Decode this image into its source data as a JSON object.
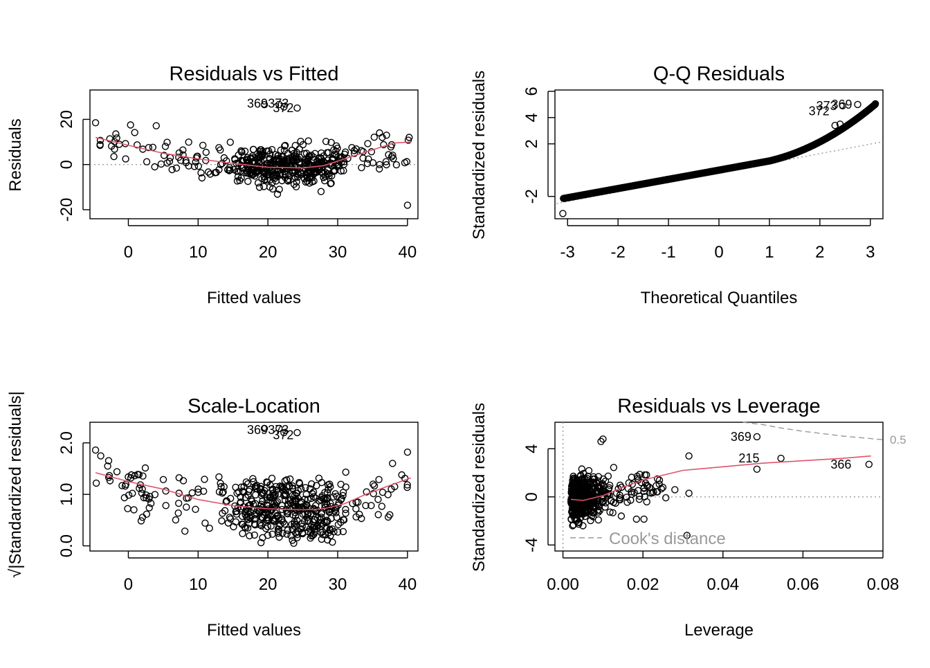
{
  "colors": {
    "smooth": "#DF536B",
    "reference": "#999999",
    "cook": "#999999",
    "points": "#000000"
  },
  "chart_data": [
    {
      "type": "scatter",
      "title": "Residuals vs Fitted",
      "xlabel": "Fitted values",
      "ylabel": "Residuals",
      "xlim": [
        -5.5,
        41.5
      ],
      "ylim": [
        -24,
        33
      ],
      "xticks": [
        0,
        10,
        20,
        30,
        40
      ],
      "yticks": [
        -20,
        0,
        20
      ],
      "hline": 0,
      "labels": [
        {
          "text": "369",
          "x": 18.5,
          "y": 27
        },
        {
          "text": "373",
          "x": 21.5,
          "y": 27
        },
        {
          "text": "372",
          "x": 22.2,
          "y": 25
        }
      ],
      "smooth": [
        [
          -4.7,
          12
        ],
        [
          0,
          8.5
        ],
        [
          5,
          5
        ],
        [
          10,
          2.5
        ],
        [
          15,
          0.5
        ],
        [
          20,
          -1.2
        ],
        [
          25,
          -1.5
        ],
        [
          28,
          -0.5
        ],
        [
          31,
          2.5
        ],
        [
          33,
          4.5
        ],
        [
          36,
          7.5
        ],
        [
          38,
          9.5
        ],
        [
          40.5,
          10
        ]
      ],
      "n_points": 490,
      "seed": 11
    },
    {
      "type": "scatter",
      "title": "Q-Q Residuals",
      "xlabel": "Theoretical Quantiles",
      "ylabel": "Standardized residuals",
      "xlim": [
        -3.25,
        3.25
      ],
      "ylim": [
        -3.7,
        6.1
      ],
      "xticks": [
        -3,
        -2,
        -1,
        0,
        1,
        2,
        3
      ],
      "yticks": [
        -2,
        2,
        4,
        6
      ],
      "qq_line": [
        [
          -3.3,
          -2.6
        ],
        [
          3.3,
          2.2
        ]
      ],
      "labels": [
        {
          "text": "373",
          "x": 2.45,
          "y": 4.9
        },
        {
          "text": "369",
          "x": 2.75,
          "y": 5.0
        },
        {
          "text": "372",
          "x": 2.3,
          "y": 4.5
        }
      ],
      "n_points": 490,
      "seed": 23
    },
    {
      "type": "scatter",
      "title": "Scale-Location",
      "xlabel": "Fitted values",
      "ylabel": "√|Standardized residuals|",
      "xlim": [
        -5.5,
        41.5
      ],
      "ylim": [
        -0.1,
        2.4
      ],
      "xticks": [
        0,
        10,
        20,
        30,
        40
      ],
      "yticks": [
        0.0,
        1.0,
        2.0
      ],
      "ytick_labels": [
        "0.0",
        "1.0",
        "2.0"
      ],
      "labels": [
        {
          "text": "369",
          "x": 18.5,
          "y": 2.25
        },
        {
          "text": "373",
          "x": 21.5,
          "y": 2.25
        },
        {
          "text": "372",
          "x": 22.2,
          "y": 2.15
        }
      ],
      "smooth": [
        [
          -4.7,
          1.42
        ],
        [
          0,
          1.25
        ],
        [
          5,
          1.1
        ],
        [
          10,
          0.9
        ],
        [
          15,
          0.78
        ],
        [
          20,
          0.72
        ],
        [
          25,
          0.7
        ],
        [
          28,
          0.72
        ],
        [
          31,
          0.82
        ],
        [
          34,
          1.0
        ],
        [
          37,
          1.15
        ],
        [
          40.5,
          1.32
        ]
      ],
      "n_points": 490,
      "seed": 37
    },
    {
      "type": "scatter",
      "title": "Residuals vs Leverage",
      "xlabel": "Leverage",
      "ylabel": "Standardized residuals",
      "xlim": [
        -0.002,
        0.08
      ],
      "ylim": [
        -4.5,
        6.2
      ],
      "xticks": [
        0.0,
        0.02,
        0.04,
        0.06,
        0.08
      ],
      "xtick_labels": [
        "0.00",
        "0.02",
        "0.04",
        "0.06",
        "0.08"
      ],
      "yticks": [
        -4,
        0,
        4
      ],
      "hline": 0,
      "vline": 0,
      "labels": [
        {
          "text": "369",
          "x": 0.0485,
          "y": 5.0
        },
        {
          "text": "215",
          "x": 0.0505,
          "y": 3.2
        },
        {
          "text": "366",
          "x": 0.0735,
          "y": 2.7
        }
      ],
      "cook_label": "0.5",
      "legend_text": "Cook's distance",
      "cook_curve": [
        [
          0.045,
          6.2
        ],
        [
          0.05,
          6.0
        ],
        [
          0.055,
          5.7
        ],
        [
          0.06,
          5.45
        ],
        [
          0.065,
          5.25
        ],
        [
          0.07,
          5.05
        ],
        [
          0.075,
          4.9
        ],
        [
          0.08,
          4.75
        ]
      ],
      "smooth": [
        [
          0.002,
          -0.2
        ],
        [
          0.005,
          -0.3
        ],
        [
          0.01,
          0.1
        ],
        [
          0.015,
          0.8
        ],
        [
          0.02,
          1.4
        ],
        [
          0.03,
          2.2
        ],
        [
          0.04,
          2.5
        ],
        [
          0.05,
          2.8
        ],
        [
          0.06,
          3.0
        ],
        [
          0.07,
          3.2
        ],
        [
          0.077,
          3.4
        ]
      ],
      "n_points": 490,
      "seed": 53
    }
  ]
}
